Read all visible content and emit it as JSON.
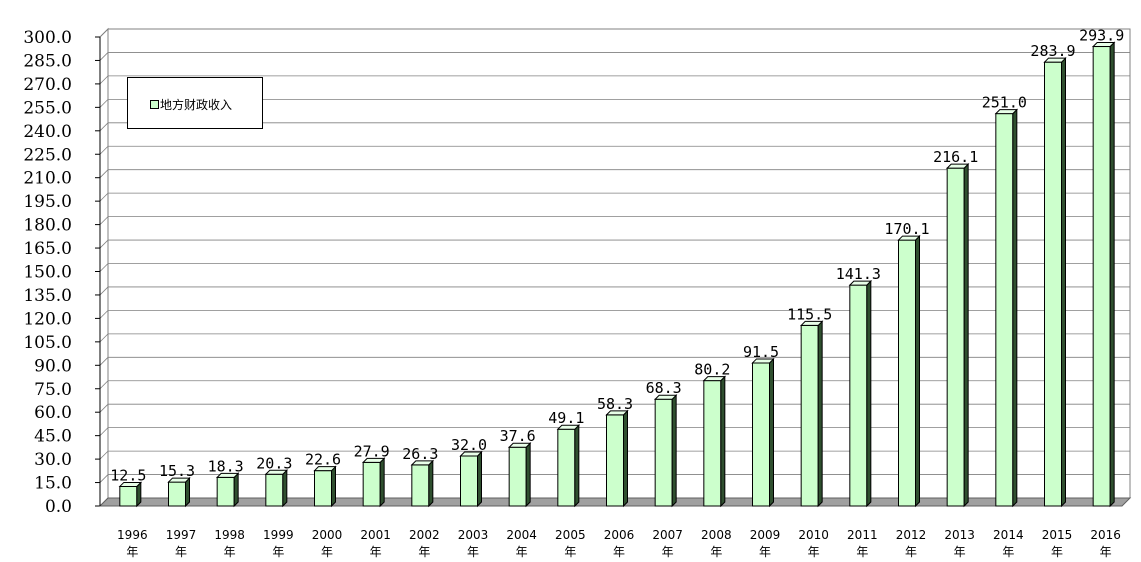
{
  "chart_data": {
    "type": "bar",
    "categories": [
      "1996年",
      "1997年",
      "1998年",
      "1999年",
      "2000年",
      "2001年",
      "2002年",
      "2003年",
      "2004年",
      "2005年",
      "2006年",
      "2007年",
      "2008年",
      "2009年",
      "2010年",
      "2011年",
      "2012年",
      "2013年",
      "2014年",
      "2015年",
      "2016年"
    ],
    "category_years": [
      "1996",
      "1997",
      "1998",
      "1999",
      "2000",
      "2001",
      "2002",
      "2003",
      "2004",
      "2005",
      "2006",
      "2007",
      "2008",
      "2009",
      "2010",
      "2011",
      "2012",
      "2013",
      "2014",
      "2015",
      "2016"
    ],
    "category_suffix": "年",
    "series": [
      {
        "name": "地方财政收入",
        "values": [
          12.5,
          15.3,
          18.3,
          20.3,
          22.6,
          27.9,
          26.3,
          32.0,
          37.6,
          49.1,
          58.3,
          68.3,
          80.2,
          91.5,
          115.5,
          141.3,
          170.1,
          216.1,
          251.0,
          283.9,
          293.9
        ],
        "labels": [
          "12.5",
          "15.3",
          "18.3",
          "20.3",
          "22.6",
          "27.9",
          "26.3",
          "32.0",
          "37.6",
          "49.1",
          "58.3",
          "68.3",
          "80.2",
          "91.5",
          "115.5",
          "141.3",
          "170.1",
          "216.1",
          "251.0",
          "283.9",
          "293.9"
        ]
      }
    ],
    "ylim": [
      0,
      300
    ],
    "ystep": 15,
    "yticks": [
      "0.0",
      "15.0",
      "30.0",
      "45.0",
      "60.0",
      "75.0",
      "90.0",
      "105.0",
      "120.0",
      "135.0",
      "150.0",
      "165.0",
      "180.0",
      "195.0",
      "210.0",
      "225.0",
      "240.0",
      "255.0",
      "270.0",
      "285.0",
      "300.0"
    ],
    "grid": true,
    "legend_position": "top-left",
    "colors": {
      "bar_face": "#ccffcc",
      "bar_side": "#2f4f2f",
      "bar_top": "#e8ffe8",
      "wall": "#ffffff",
      "floor": "#a0a0a0"
    }
  }
}
